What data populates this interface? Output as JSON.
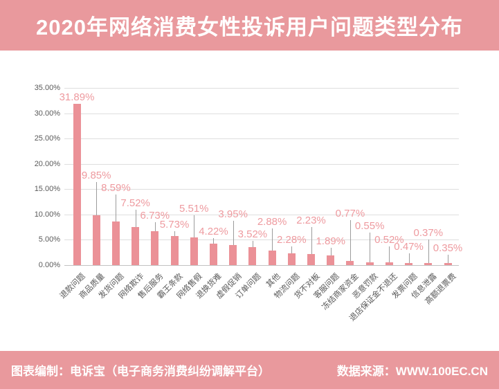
{
  "header": {
    "title": "2020年网络消费女性投诉用户问题类型分布"
  },
  "footer": {
    "left": "图表编制：电诉宝（电子商务消费纠纷调解平台）",
    "right": "数据来源：WWW.100EC.CN"
  },
  "colors": {
    "banner": "#e9999d",
    "bar": "#eb9197",
    "value_label": "#ee9a9f",
    "grid": "#dedede",
    "axis_line": "#c2c2c2",
    "axis_text": "#595959",
    "leader": "#9b9b9b"
  },
  "chart_data": {
    "type": "bar",
    "title": "2020年网络消费女性投诉用户问题类型分布",
    "xlabel": "",
    "ylabel": "",
    "ylim": [
      0,
      35
    ],
    "grid": true,
    "legend": false,
    "categories": [
      "退款问题",
      "商品质量",
      "发货问题",
      "网络欺诈",
      "售后服务",
      "霸王条款",
      "网络售假",
      "退换货难",
      "虚假促销",
      "订单问题",
      "其他",
      "物流问题",
      "货不对板",
      "客服问题",
      "冻结商家资金",
      "恶意罚款",
      "退店保证金不退还",
      "发票问题",
      "信息泄露",
      "高额退票费"
    ],
    "values": [
      31.89,
      9.85,
      8.59,
      7.52,
      6.73,
      5.73,
      5.51,
      4.22,
      3.95,
      3.52,
      2.88,
      2.28,
      2.23,
      1.89,
      0.77,
      0.55,
      0.52,
      0.47,
      0.37,
      0.35
    ],
    "value_labels": [
      "31.89%",
      "9.85%",
      "8.59%",
      "7.52%",
      "6.73%",
      "5.73%",
      "5.51%",
      "4.22%",
      "3.95%",
      "3.52%",
      "2.88%",
      "2.28%",
      "2.23%",
      "1.89%",
      "0.77%",
      "0.55%",
      "0.52%",
      "0.47%",
      "0.37%",
      "0.35%"
    ],
    "y_ticks": [
      "35.00%",
      "30.00%",
      "25.00%",
      "20.00%",
      "15.00%",
      "10.00%",
      "5.00%",
      "0.00%"
    ],
    "label_y_pct": [
      32.0,
      16.5,
      14.1,
      11.1,
      8.6,
      6.8,
      10.0,
      5.5,
      8.9,
      4.9,
      7.4,
      3.8,
      7.7,
      3.6,
      9.0,
      6.6,
      3.8,
      2.5,
      5.2,
      2.2
    ]
  }
}
